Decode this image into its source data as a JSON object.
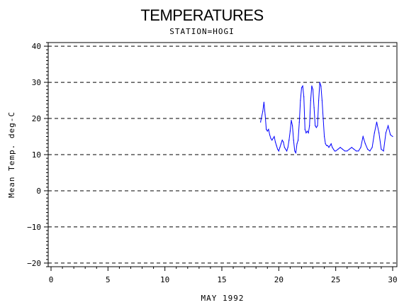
{
  "chart_data": {
    "type": "line",
    "title": "TEMPERATURES",
    "subtitle": "STATION=HOGI",
    "xlabel": "MAY 1992",
    "ylabel": "Mean Temp. deg-C",
    "xlim": [
      0,
      30
    ],
    "ylim": [
      -21,
      41
    ],
    "xticks": [
      0,
      5,
      10,
      15,
      20,
      25,
      30
    ],
    "yticks": [
      -20,
      -10,
      0,
      10,
      20,
      30,
      40
    ],
    "grid": "dashed horizontal at major y ticks",
    "series": [
      {
        "color": "#0000ff",
        "x": [
          18.4,
          18.6,
          18.7,
          18.8,
          18.9,
          19.0,
          19.1,
          19.2,
          19.3,
          19.4,
          19.5,
          19.6,
          19.7,
          19.8,
          19.9,
          20.0,
          20.1,
          20.2,
          20.3,
          20.4,
          20.5,
          20.6,
          20.7,
          20.8,
          20.9,
          21.0,
          21.1,
          21.2,
          21.3,
          21.4,
          21.5,
          21.6,
          21.7,
          21.8,
          21.9,
          22.0,
          22.1,
          22.2,
          22.3,
          22.4,
          22.5,
          22.6,
          22.7,
          22.8,
          22.9,
          23.0,
          23.1,
          23.2,
          23.3,
          23.4,
          23.5,
          23.6,
          23.7,
          23.8,
          23.9,
          24.0,
          24.1,
          24.2,
          24.3,
          24.4,
          24.5,
          24.6,
          24.7,
          24.8,
          24.9,
          25.0,
          25.2,
          25.4,
          25.6,
          25.8,
          26.0,
          26.2,
          26.4,
          26.6,
          26.8,
          27.0,
          27.2,
          27.4,
          27.6,
          27.8,
          28.0,
          28.2,
          28.4,
          28.6,
          28.8,
          29.0,
          29.2,
          29.4,
          29.6,
          29.8,
          30.0
        ],
        "y": [
          19,
          22,
          24.5,
          21,
          17,
          16.5,
          17,
          15.5,
          14.5,
          14,
          14.5,
          15,
          13.5,
          12.5,
          11.5,
          11,
          12,
          13,
          14,
          13.5,
          12,
          11.5,
          11,
          12,
          14,
          16.5,
          19.5,
          18,
          14,
          11,
          10.5,
          13,
          14,
          19,
          25,
          28.5,
          29,
          26,
          17,
          16,
          16.5,
          16,
          18,
          25,
          29,
          28,
          23,
          18,
          17.5,
          18,
          25,
          30,
          29,
          25,
          20,
          15,
          13,
          12.5,
          12.5,
          12,
          12.5,
          13,
          12,
          11.5,
          11,
          11,
          11.5,
          12,
          11.5,
          11,
          11,
          11.5,
          12,
          11.5,
          11,
          11,
          12,
          15,
          13,
          11.5,
          11,
          12,
          16,
          19,
          16,
          11.5,
          11,
          16,
          18,
          15.5,
          15
        ]
      }
    ]
  }
}
